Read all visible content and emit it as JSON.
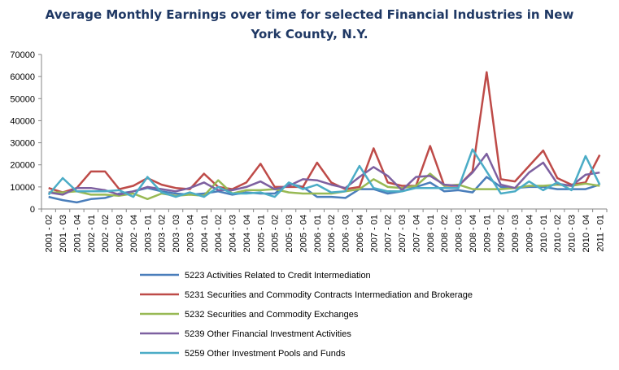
{
  "chart_data": {
    "type": "line",
    "title_lines": [
      "Average Monthly Earnings over time for selected Financial Industries in New",
      "York County, N.Y."
    ],
    "xlabel": "",
    "ylabel": "",
    "ylim": [
      0,
      70000
    ],
    "yticks": [
      0,
      10000,
      20000,
      30000,
      40000,
      50000,
      60000,
      70000
    ],
    "grid": "off",
    "legend_position": "bottom",
    "categories": [
      "2001 - 02",
      "2001 - 03",
      "2001 - 04",
      "2002 - 01",
      "2002 - 02",
      "2002 - 03",
      "2002 - 04",
      "2003 - 01",
      "2003 - 02",
      "2003 - 03",
      "2003 - 04",
      "2004 - 01",
      "2004 - 02",
      "2004 - 03",
      "2004 - 04",
      "2005 - 01",
      "2005 - 02",
      "2005 - 03",
      "2005 - 04",
      "2006 - 01",
      "2006 - 02",
      "2006 - 03",
      "2006 - 04",
      "2007 - 01",
      "2007 - 02",
      "2007 - 03",
      "2007 - 04",
      "2008 - 01",
      "2008 - 02",
      "2008 - 03",
      "2008 - 04",
      "2009 - 01",
      "2009 - 02",
      "2009 - 03",
      "2009 - 04",
      "2010 - 01",
      "2010 - 02",
      "2010 - 03",
      "2010 - 04",
      "2011 - 01"
    ],
    "series": [
      {
        "name": "5223 Activities Related to Credit Intermediation",
        "color": "#4a7ebb",
        "values": [
          5500,
          4000,
          3000,
          4500,
          5000,
          7000,
          8000,
          9500,
          8000,
          7000,
          6500,
          7000,
          8000,
          6500,
          7500,
          7000,
          7000,
          11500,
          10000,
          5500,
          5500,
          5000,
          9000,
          9000,
          7000,
          8000,
          10000,
          12000,
          8000,
          8500,
          7500,
          14500,
          10000,
          9500,
          10000,
          10000,
          9000,
          9000,
          9000,
          11000
        ]
      },
      {
        "name": "5231 Securities and Commodity Contracts Intermediation and Brokerage",
        "color": "#be4b48",
        "values": [
          9500,
          7500,
          9500,
          17000,
          17000,
          9000,
          10500,
          14000,
          11000,
          9500,
          9000,
          16000,
          10000,
          9000,
          12000,
          20500,
          10000,
          10000,
          10000,
          21000,
          12000,
          9000,
          10000,
          27500,
          12000,
          10500,
          10500,
          28500,
          10500,
          10500,
          17000,
          62000,
          13500,
          12500,
          19500,
          26500,
          14000,
          11000,
          12000,
          24500
        ]
      },
      {
        "name": "5232 Securities and Commodity Exchanges",
        "color": "#98b954",
        "values": [
          7500,
          7500,
          8000,
          6500,
          6500,
          6000,
          7000,
          4500,
          7000,
          6000,
          6500,
          6000,
          13000,
          7000,
          8500,
          8500,
          9000,
          7500,
          7000,
          7000,
          7000,
          8000,
          9000,
          13500,
          10000,
          9500,
          10500,
          16000,
          10500,
          11000,
          9000,
          9000,
          9000,
          9500,
          10500,
          10500,
          11000,
          10500,
          11500,
          10500
        ]
      },
      {
        "name": "5239 Other Financial Investment Activities",
        "color": "#7d60a0",
        "values": [
          7500,
          6500,
          9500,
          9500,
          8500,
          6500,
          8000,
          10000,
          9000,
          8000,
          9500,
          12000,
          8500,
          8500,
          10000,
          12500,
          9000,
          10500,
          13500,
          13000,
          11000,
          9500,
          14500,
          19000,
          15000,
          8500,
          14500,
          15000,
          11000,
          10500,
          16500,
          25000,
          11000,
          9500,
          16500,
          21000,
          11500,
          10500,
          15500,
          16500
        ]
      },
      {
        "name": "5259 Other Investment Pools and Funds",
        "color": "#4bacc6",
        "values": [
          6500,
          14000,
          8000,
          8000,
          8000,
          8500,
          5500,
          14500,
          7500,
          5500,
          7500,
          5500,
          10000,
          7000,
          7000,
          7500,
          5500,
          12000,
          9000,
          11000,
          7500,
          8000,
          19500,
          9500,
          8000,
          8000,
          9500,
          9500,
          9500,
          9500,
          27000,
          17000,
          7000,
          8000,
          12500,
          8500,
          12000,
          8500,
          24000,
          11000
        ]
      }
    ]
  }
}
